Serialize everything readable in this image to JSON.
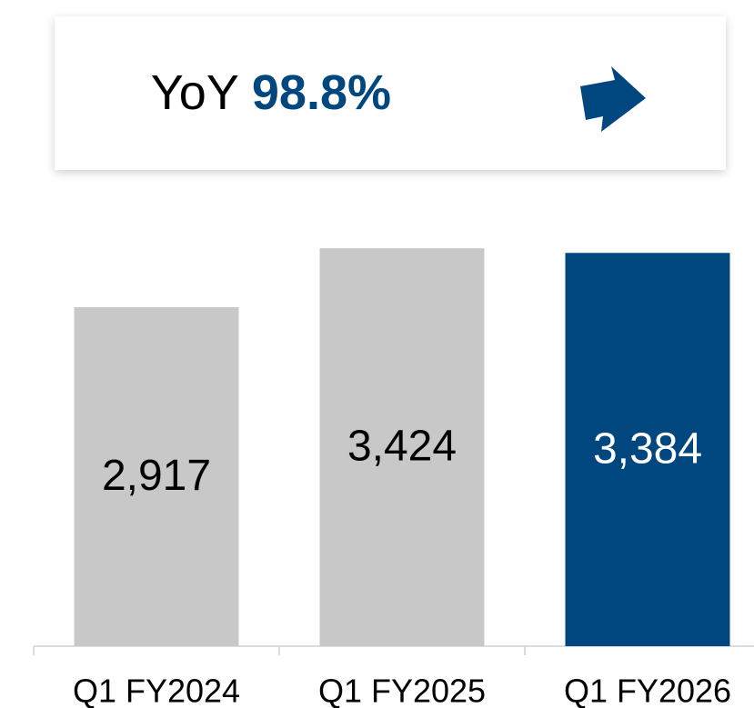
{
  "chart_data": {
    "type": "bar",
    "annotation": {
      "label": "YoY",
      "value": "98.8%"
    },
    "categories": [
      "Q1 FY2024",
      "Q1 FY2025",
      "Q1 FY2026"
    ],
    "values": [
      2917,
      3424,
      3384
    ],
    "value_labels": [
      "2,917",
      "3,424",
      "3,384"
    ],
    "colors": [
      "#c8c8c8",
      "#c8c8c8",
      "#00467f"
    ],
    "label_colors": [
      "#000000",
      "#000000",
      "#ffffff"
    ],
    "ylim": [
      0,
      4000
    ]
  }
}
